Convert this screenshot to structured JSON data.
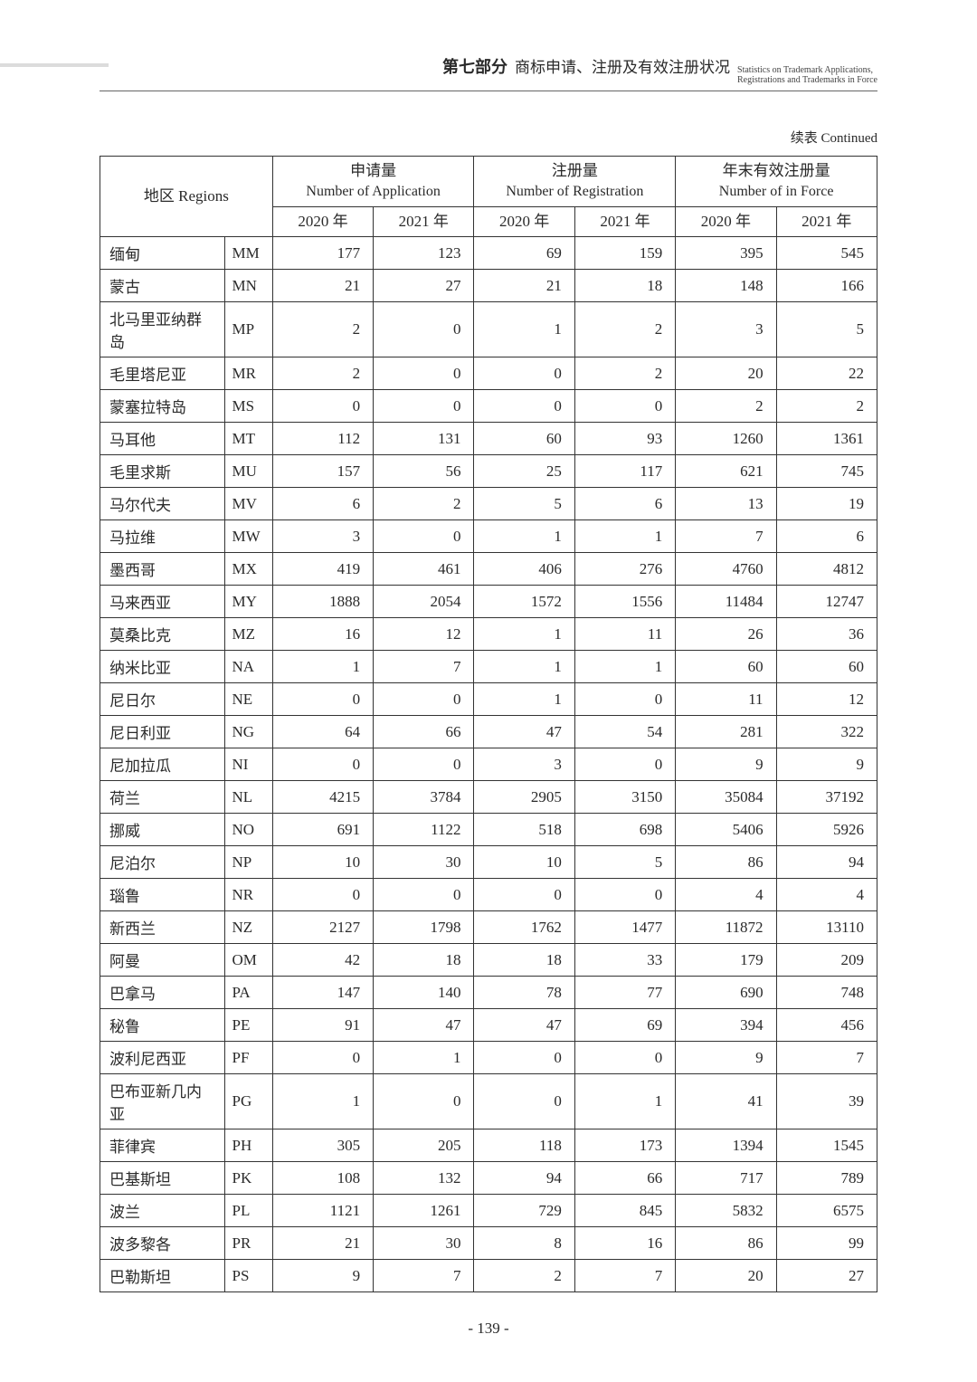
{
  "header": {
    "part": "第七部分",
    "title_zh": "商标申请、注册及有效注册状况",
    "title_en_line1": "Statistics on Trademark Applications,",
    "title_en_line2": "Registrations and Trademarks in Force"
  },
  "continued": "续表 Continued",
  "columns": {
    "region_zh": "地区",
    "region_en": "Regions",
    "app_zh": "申请量",
    "app_en": "Number of Application",
    "reg_zh": "注册量",
    "reg_en": "Number of Registration",
    "force_zh": "年末有效注册量",
    "force_en": "Number of in Force",
    "y2020": "2020 年",
    "y2021": "2021 年"
  },
  "rows": [
    {
      "name": "缅甸",
      "code": "MM",
      "a20": "177",
      "a21": "123",
      "r20": "69",
      "r21": "159",
      "f20": "395",
      "f21": "545"
    },
    {
      "name": "蒙古",
      "code": "MN",
      "a20": "21",
      "a21": "27",
      "r20": "21",
      "r21": "18",
      "f20": "148",
      "f21": "166"
    },
    {
      "name": "北马里亚纳群岛",
      "code": "MP",
      "a20": "2",
      "a21": "0",
      "r20": "1",
      "r21": "2",
      "f20": "3",
      "f21": "5"
    },
    {
      "name": "毛里塔尼亚",
      "code": "MR",
      "a20": "2",
      "a21": "0",
      "r20": "0",
      "r21": "2",
      "f20": "20",
      "f21": "22"
    },
    {
      "name": "蒙塞拉特岛",
      "code": "MS",
      "a20": "0",
      "a21": "0",
      "r20": "0",
      "r21": "0",
      "f20": "2",
      "f21": "2"
    },
    {
      "name": "马耳他",
      "code": "MT",
      "a20": "112",
      "a21": "131",
      "r20": "60",
      "r21": "93",
      "f20": "1260",
      "f21": "1361"
    },
    {
      "name": "毛里求斯",
      "code": "MU",
      "a20": "157",
      "a21": "56",
      "r20": "25",
      "r21": "117",
      "f20": "621",
      "f21": "745"
    },
    {
      "name": "马尔代夫",
      "code": "MV",
      "a20": "6",
      "a21": "2",
      "r20": "5",
      "r21": "6",
      "f20": "13",
      "f21": "19"
    },
    {
      "name": "马拉维",
      "code": "MW",
      "a20": "3",
      "a21": "0",
      "r20": "1",
      "r21": "1",
      "f20": "7",
      "f21": "6"
    },
    {
      "name": "墨西哥",
      "code": "MX",
      "a20": "419",
      "a21": "461",
      "r20": "406",
      "r21": "276",
      "f20": "4760",
      "f21": "4812"
    },
    {
      "name": "马来西亚",
      "code": "MY",
      "a20": "1888",
      "a21": "2054",
      "r20": "1572",
      "r21": "1556",
      "f20": "11484",
      "f21": "12747"
    },
    {
      "name": "莫桑比克",
      "code": "MZ",
      "a20": "16",
      "a21": "12",
      "r20": "1",
      "r21": "11",
      "f20": "26",
      "f21": "36"
    },
    {
      "name": "纳米比亚",
      "code": "NA",
      "a20": "1",
      "a21": "7",
      "r20": "1",
      "r21": "1",
      "f20": "60",
      "f21": "60"
    },
    {
      "name": "尼日尔",
      "code": "NE",
      "a20": "0",
      "a21": "0",
      "r20": "1",
      "r21": "0",
      "f20": "11",
      "f21": "12"
    },
    {
      "name": "尼日利亚",
      "code": "NG",
      "a20": "64",
      "a21": "66",
      "r20": "47",
      "r21": "54",
      "f20": "281",
      "f21": "322"
    },
    {
      "name": "尼加拉瓜",
      "code": "NI",
      "a20": "0",
      "a21": "0",
      "r20": "3",
      "r21": "0",
      "f20": "9",
      "f21": "9"
    },
    {
      "name": "荷兰",
      "code": "NL",
      "a20": "4215",
      "a21": "3784",
      "r20": "2905",
      "r21": "3150",
      "f20": "35084",
      "f21": "37192"
    },
    {
      "name": "挪威",
      "code": "NO",
      "a20": "691",
      "a21": "1122",
      "r20": "518",
      "r21": "698",
      "f20": "5406",
      "f21": "5926"
    },
    {
      "name": "尼泊尔",
      "code": "NP",
      "a20": "10",
      "a21": "30",
      "r20": "10",
      "r21": "5",
      "f20": "86",
      "f21": "94"
    },
    {
      "name": "瑙鲁",
      "code": "NR",
      "a20": "0",
      "a21": "0",
      "r20": "0",
      "r21": "0",
      "f20": "4",
      "f21": "4"
    },
    {
      "name": "新西兰",
      "code": "NZ",
      "a20": "2127",
      "a21": "1798",
      "r20": "1762",
      "r21": "1477",
      "f20": "11872",
      "f21": "13110"
    },
    {
      "name": "阿曼",
      "code": "OM",
      "a20": "42",
      "a21": "18",
      "r20": "18",
      "r21": "33",
      "f20": "179",
      "f21": "209"
    },
    {
      "name": "巴拿马",
      "code": "PA",
      "a20": "147",
      "a21": "140",
      "r20": "78",
      "r21": "77",
      "f20": "690",
      "f21": "748"
    },
    {
      "name": "秘鲁",
      "code": "PE",
      "a20": "91",
      "a21": "47",
      "r20": "47",
      "r21": "69",
      "f20": "394",
      "f21": "456"
    },
    {
      "name": "波利尼西亚",
      "code": "PF",
      "a20": "0",
      "a21": "1",
      "r20": "0",
      "r21": "0",
      "f20": "9",
      "f21": "7"
    },
    {
      "name": "巴布亚新几内亚",
      "code": "PG",
      "a20": "1",
      "a21": "0",
      "r20": "0",
      "r21": "1",
      "f20": "41",
      "f21": "39"
    },
    {
      "name": "菲律宾",
      "code": "PH",
      "a20": "305",
      "a21": "205",
      "r20": "118",
      "r21": "173",
      "f20": "1394",
      "f21": "1545"
    },
    {
      "name": "巴基斯坦",
      "code": "PK",
      "a20": "108",
      "a21": "132",
      "r20": "94",
      "r21": "66",
      "f20": "717",
      "f21": "789"
    },
    {
      "name": "波兰",
      "code": "PL",
      "a20": "1121",
      "a21": "1261",
      "r20": "729",
      "r21": "845",
      "f20": "5832",
      "f21": "6575"
    },
    {
      "name": "波多黎各",
      "code": "PR",
      "a20": "21",
      "a21": "30",
      "r20": "8",
      "r21": "16",
      "f20": "86",
      "f21": "99"
    },
    {
      "name": "巴勒斯坦",
      "code": "PS",
      "a20": "9",
      "a21": "7",
      "r20": "2",
      "r21": "7",
      "f20": "20",
      "f21": "27"
    }
  ],
  "page_number": "- 139 -"
}
